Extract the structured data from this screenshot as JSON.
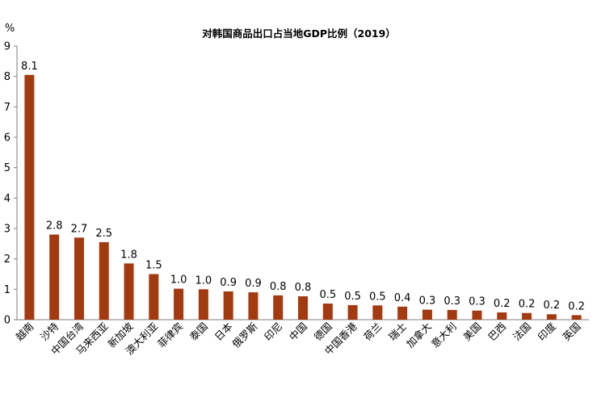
{
  "chart_data": {
    "type": "bar",
    "title": "对韩国商品出口占当地GDP比例（2019）",
    "unit_label": "%",
    "xlabel": "",
    "ylabel": "",
    "ylim": [
      0,
      9
    ],
    "y_ticks": [
      0,
      1,
      2,
      3,
      4,
      5,
      6,
      7,
      8,
      9
    ],
    "grid": false,
    "legend": "none",
    "categories": [
      "越南",
      "沙特",
      "中国台湾",
      "马来西亚",
      "新加坡",
      "澳大利亚",
      "菲律宾",
      "泰国",
      "日本",
      "俄罗斯",
      "印尼",
      "中国",
      "德国",
      "中国香港",
      "荷兰",
      "瑞士",
      "加拿大",
      "意大利",
      "美国",
      "巴西",
      "法国",
      "印度",
      "英国"
    ],
    "values": [
      8.05,
      2.8,
      2.7,
      2.55,
      1.85,
      1.5,
      1.02,
      1.0,
      0.93,
      0.9,
      0.8,
      0.77,
      0.53,
      0.48,
      0.47,
      0.43,
      0.33,
      0.32,
      0.3,
      0.24,
      0.22,
      0.18,
      0.15
    ],
    "data_labels": [
      "8.1",
      "2.8",
      "2.7",
      "2.5",
      "1.8",
      "1.5",
      "1.0",
      "1.0",
      "0.9",
      "0.9",
      "0.8",
      "0.8",
      "0.5",
      "0.5",
      "0.5",
      "0.4",
      "0.3",
      "0.3",
      "0.3",
      "0.2",
      "0.2",
      "0.2",
      "0.2"
    ],
    "colors": {
      "bar": "#A33A10",
      "axis": "#7f7f7f",
      "text": "#000000"
    }
  }
}
